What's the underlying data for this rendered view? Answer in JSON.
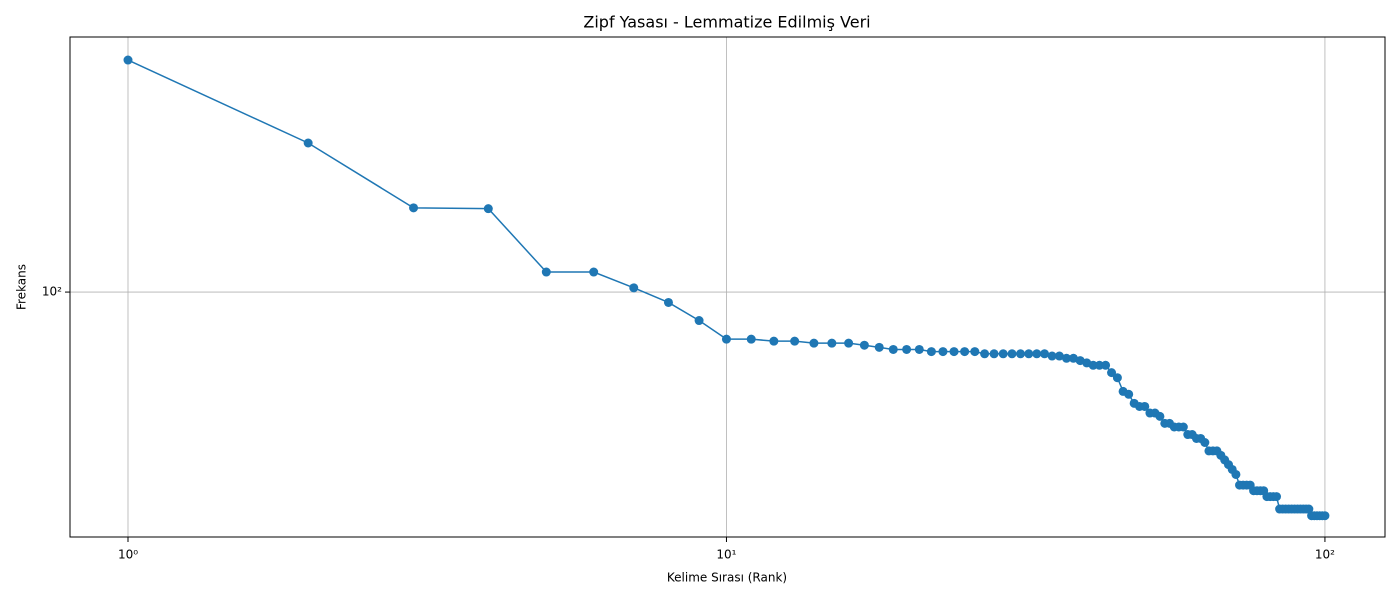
{
  "chart_data": {
    "type": "line",
    "title": "Zipf Yasası - Lemmatize Edilmiş Veri",
    "x_label": "Kelime Sırası (Rank)",
    "y_label": "Frekans",
    "x": [
      1,
      2,
      3,
      4,
      5,
      6,
      7,
      8,
      9,
      10,
      11,
      12,
      13,
      14,
      15,
      16,
      17,
      18,
      19,
      20,
      21,
      22,
      23,
      24,
      25,
      26,
      27,
      28,
      29,
      30,
      31,
      32,
      33,
      34,
      35,
      36,
      37,
      38,
      39,
      40,
      41,
      42,
      43,
      44,
      45,
      46,
      47,
      48,
      49,
      50,
      51,
      52,
      53,
      54,
      55,
      56,
      57,
      58,
      59,
      60,
      61,
      62,
      63,
      64,
      65,
      66,
      67,
      68,
      69,
      70,
      71,
      72,
      73,
      74,
      75,
      76,
      77,
      78,
      79,
      80,
      81,
      82,
      83,
      84,
      85,
      86,
      87,
      88,
      89,
      90,
      91,
      92,
      93,
      94,
      95,
      96,
      97,
      98,
      99,
      100
    ],
    "series": [
      {
        "color": "#1f77b4",
        "values": [
          505,
          283,
          180,
          179,
          115,
          115,
          103,
          93,
          82,
          72,
          72,
          71,
          71,
          70,
          70,
          70,
          69,
          68,
          67,
          67,
          67,
          66,
          66,
          66,
          66,
          66,
          65,
          65,
          65,
          65,
          65,
          65,
          65,
          65,
          64,
          64,
          63,
          63,
          62,
          61,
          60,
          60,
          60,
          57,
          55,
          50,
          49,
          46,
          45,
          45,
          43,
          43,
          42,
          40,
          40,
          39,
          39,
          39,
          37,
          37,
          36,
          36,
          35,
          33,
          33,
          33,
          32,
          31,
          30,
          29,
          28,
          26,
          26,
          26,
          26,
          25,
          25,
          25,
          25,
          24,
          24,
          24,
          24,
          22,
          22,
          22,
          22,
          22,
          22,
          22,
          22,
          22,
          22,
          22,
          21,
          21,
          21,
          21,
          21,
          21
        ]
      }
    ],
    "x_log": true,
    "y_log": true,
    "xlim": [
      0.8,
      126
    ],
    "ylim": [
      18.1,
      593
    ],
    "xticks": [
      {
        "value": 1,
        "label": "10⁰"
      },
      {
        "value": 10,
        "label": "10¹"
      },
      {
        "value": 100,
        "label": "10²"
      }
    ],
    "yticks": [
      {
        "value": 100,
        "label": "10²"
      }
    ],
    "grid": true
  }
}
